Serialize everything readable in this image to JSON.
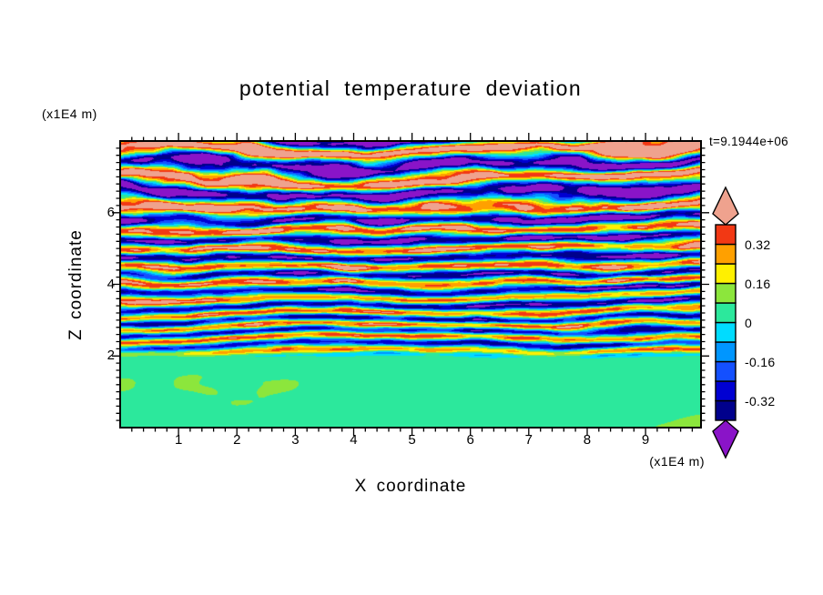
{
  "title": "potential temperature deviation",
  "time_label": "t=9.1944e+06",
  "axes": {
    "x": {
      "label": "X coordinate",
      "unit": "(x1E4 m)"
    },
    "z": {
      "label": "Z coordinate",
      "unit": "(x1E4 m)"
    }
  },
  "chart_data": {
    "type": "heatmap",
    "title": "potential temperature deviation",
    "xlabel": "X coordinate",
    "ylabel": "Z coordinate",
    "x_unit": "(x1E4 m)",
    "z_unit": "(x1E4 m)",
    "time_annotation": "t=9.1944e+06",
    "x_range": [
      0,
      9.95
    ],
    "z_range": [
      0,
      8
    ],
    "x_ticks": [
      1,
      2,
      3,
      4,
      5,
      6,
      7,
      8,
      9
    ],
    "z_ticks": [
      2,
      4,
      6
    ],
    "x_minor_step": 0.2,
    "z_minor_step": 0.2,
    "grid": false,
    "legend_position": "right-colorbar",
    "palette": {
      "levels": [
        -0.4,
        -0.32,
        -0.24,
        -0.16,
        -0.08,
        0,
        0.08,
        0.16,
        0.24,
        0.32,
        0.4
      ],
      "colors": [
        "#00008C",
        "#0000D2",
        "#1450FF",
        "#0096FF",
        "#00DCFF",
        "#2CE89C",
        "#8CE63C",
        "#FFF000",
        "#FFA000",
        "#F23814"
      ],
      "under_color": "#8A14C8",
      "over_color": "#EFA28E",
      "colorbar_labels": [
        {
          "text": "0.32",
          "level": 0.32
        },
        {
          "text": "0.16",
          "level": 0.16
        },
        {
          "text": "0",
          "level": 0
        },
        {
          "text": "-0.16",
          "level": -0.16
        },
        {
          "text": "-0.32",
          "level": -0.32
        }
      ]
    },
    "structure": "Vertical x-z cross-section of potential temperature deviation: a well-mixed near-zero (green, 0 to 0.08) layer below z of about 2x1E4 m with faint warmer (yellow-green) blobs; above it, stratified turbulent horizontal layers of alternating warm (salmon/red/orange/yellow) and cool (purple/navy/blue/cyan) bands whose amplitude and thickness increase with height, saturating beyond +/-0.4 (salmon and purple) through much of the upper half.",
    "field_model": {
      "mixed_layer_top": 2.05,
      "mixed_layer_edge_wiggle": 0.24,
      "band_cycles_linear": 3.3,
      "band_cycles_quadratic": -0.14,
      "warp_large": {
        "fx": 0.28,
        "fz": 0.42,
        "gain": 9.0
      },
      "warp_small": {
        "fx": 0.9,
        "fz": 1.6,
        "gain": 3.2
      },
      "detail": {
        "fx": 1.3,
        "fz": 2.6,
        "gain": 0.5
      },
      "amp_base": 0.36,
      "amp_slope": 0.045,
      "bottom_mean": 0.045,
      "bottom_amplitude": 0.075
    }
  }
}
